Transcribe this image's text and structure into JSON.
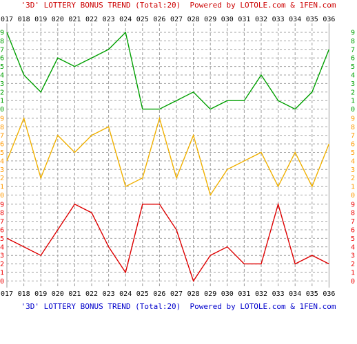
{
  "header": {
    "title": "'3D' LOTTERY BONUS TREND (Total:20)  Powered by LOTOLE.com & 1FEN.com",
    "color": "#cc0000"
  },
  "footer": {
    "title": "'3D' LOTTERY BONUS TREND (Total:20)  Powered by LOTOLE.com & 1FEN.com",
    "color": "#0000cc"
  },
  "chart_data": {
    "type": "line",
    "categories": [
      "017",
      "018",
      "019",
      "020",
      "021",
      "022",
      "023",
      "024",
      "025",
      "026",
      "027",
      "028",
      "029",
      "030",
      "031",
      "032",
      "033",
      "034",
      "035",
      "036"
    ],
    "y_ticks": [
      "0",
      "1",
      "2",
      "3",
      "4",
      "5",
      "6",
      "7",
      "8",
      "9"
    ],
    "ylim": [
      0,
      9
    ],
    "grid": true,
    "series": [
      {
        "values": [
          9,
          4,
          2,
          6,
          5,
          6,
          7,
          9,
          0,
          0,
          1,
          2,
          0,
          1,
          1,
          4,
          1,
          0,
          2,
          7
        ],
        "color": "#00a000",
        "tick_color": "#00a000"
      },
      {
        "values": [
          4,
          9,
          2,
          7,
          5,
          7,
          8,
          1,
          2,
          9,
          2,
          7,
          0,
          3,
          4,
          5,
          1,
          5,
          1,
          6
        ],
        "color": "#f0b000",
        "tick_color": "#ff9900"
      },
      {
        "values": [
          5,
          4,
          3,
          6,
          9,
          8,
          4,
          1,
          9,
          9,
          6,
          0,
          3,
          4,
          2,
          2,
          9,
          2,
          3,
          2
        ],
        "color": "#dd0000",
        "tick_color": "#ee0000"
      }
    ]
  }
}
